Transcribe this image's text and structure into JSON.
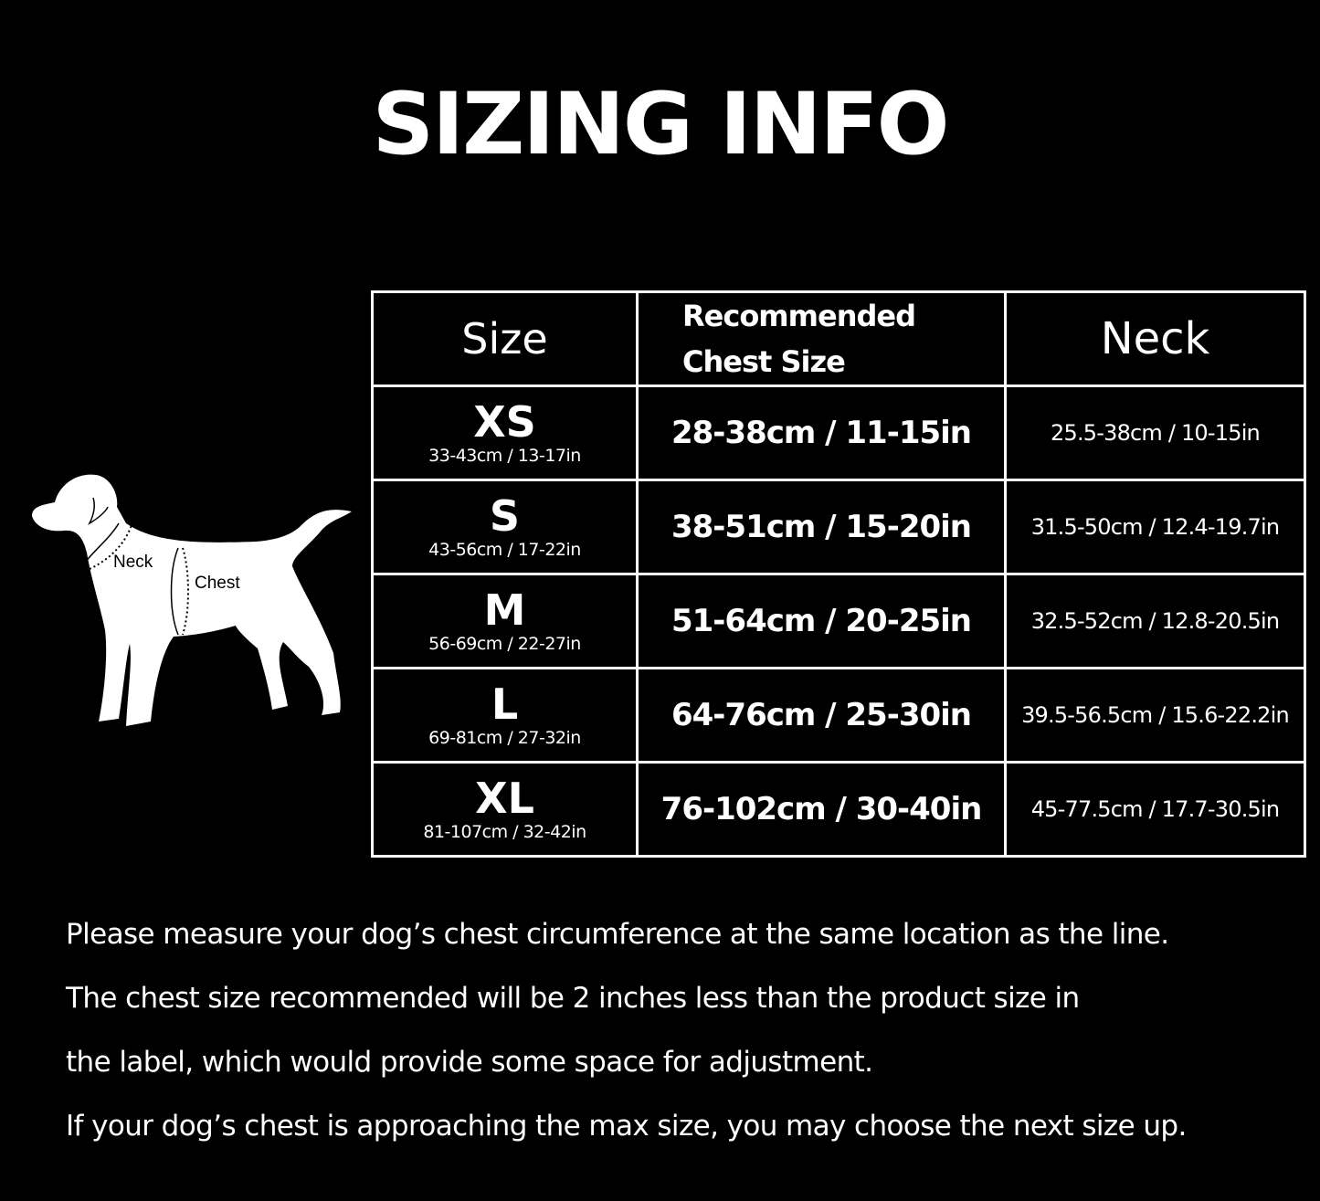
{
  "title": "SIZING INFO",
  "diagram": {
    "neck_label": "Neck",
    "chest_label": "Chest"
  },
  "table": {
    "headers": {
      "size": "Size",
      "chest": [
        "Recommended",
        "Chest Size"
      ],
      "neck": "Neck"
    },
    "rows": [
      {
        "size": "XS",
        "product": "33-43cm / 13-17in",
        "chest": "28-38cm / 11-15in",
        "neck": "25.5-38cm / 10-15in"
      },
      {
        "size": "S",
        "product": "43-56cm / 17-22in",
        "chest": "38-51cm / 15-20in",
        "neck": "31.5-50cm / 12.4-19.7in"
      },
      {
        "size": "M",
        "product": "56-69cm / 22-27in",
        "chest": "51-64cm / 20-25in",
        "neck": "32.5-52cm / 12.8-20.5in"
      },
      {
        "size": "L",
        "product": "69-81cm / 27-32in",
        "chest": "64-76cm / 25-30in",
        "neck": "39.5-56.5cm / 15.6-22.2in"
      },
      {
        "size": "XL",
        "product": "81-107cm / 32-42in",
        "chest": "76-102cm / 30-40in",
        "neck": "45-77.5cm / 17.7-30.5in"
      }
    ]
  },
  "notes": [
    "Please measure your dog’s chest circumference at the same location as the line.",
    "The chest size recommended will be 2 inches less than the product size in",
    "the label, which would provide some space for adjustment.",
    "If your dog’s chest is approaching the max size, you may choose the next size up."
  ]
}
